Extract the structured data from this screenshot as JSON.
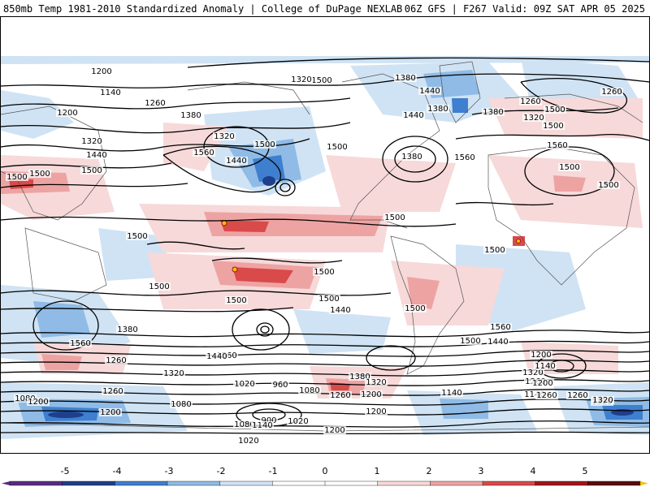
{
  "header": {
    "left_title": "850mb Temp 1981-2010 Standardized Anomaly | College of DuPage NEXLAB",
    "right_title": "06Z GFS | F267 Valid: 09Z SAT APR 05 2025"
  },
  "colors": {
    "anom_m5": "#5a2a86",
    "anom_m4": "#1f3f8a",
    "anom_m3": "#3e7fcf",
    "anom_m2": "#8fbbe6",
    "anom_m1": "#cfe3f4",
    "anom_p1": "#f7d9d9",
    "anom_p2": "#eea3a3",
    "anom_p3": "#d94a4a",
    "anom_p4": "#a3141b",
    "anom_p5": "#5c0a10",
    "anom_max": "#f2c200",
    "contour": "#000000",
    "coast": "#555555"
  },
  "colorbar": {
    "ticks": [
      "-5",
      "-4",
      "-3",
      "-2",
      "-1",
      "0",
      "1",
      "2",
      "3",
      "4",
      "5"
    ]
  },
  "contour_labels": {
    "items": [
      "1200",
      "1140",
      "1260",
      "1200",
      "1380",
      "1320",
      "1440",
      "1500",
      "1500",
      "1500",
      "1560",
      "1500",
      "1320",
      "1440",
      "1500",
      "1320",
      "1380",
      "1440",
      "1380",
      "1440",
      "1500",
      "1380",
      "1560",
      "1260",
      "1500",
      "1320",
      "1380",
      "1500",
      "1260",
      "1560",
      "1500",
      "1500",
      "1500",
      "1500",
      "1500",
      "1500",
      "1500",
      "1440",
      "1500",
      "1500",
      "1560",
      "1500",
      "1380",
      "1260",
      "1320",
      "1200",
      "1140",
      "1260",
      "1200",
      "1080",
      "1200",
      "1200",
      "1260",
      "1320",
      "1440",
      "1560",
      "1260",
      "1320",
      "1200",
      "1260",
      "1140",
      "1020",
      "960",
      "1080",
      "1380",
      "1320",
      "1200",
      "1080",
      "1020",
      "900",
      "1080",
      "1140",
      "1020",
      "1200",
      "1140",
      "1260",
      "1320",
      "1500",
      "1440",
      "1560"
    ]
  }
}
